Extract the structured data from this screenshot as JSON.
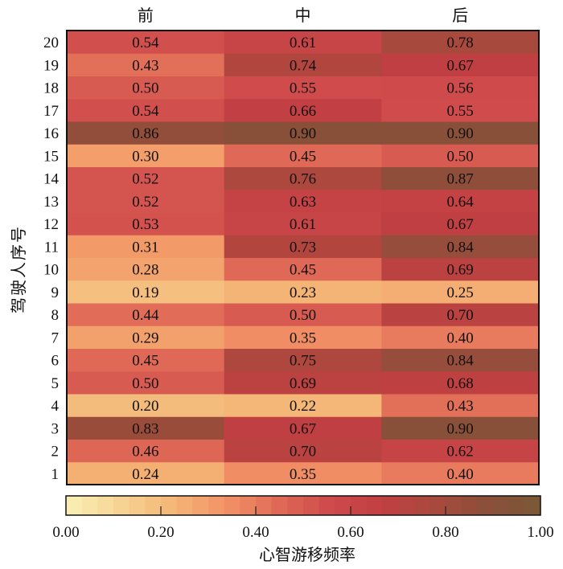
{
  "chart_data": {
    "type": "heatmap",
    "title": "",
    "xlabel": "",
    "ylabel": "驾驶人序号",
    "x_categories": [
      "前",
      "中",
      "后"
    ],
    "y_categories": [
      "1",
      "2",
      "3",
      "4",
      "5",
      "6",
      "7",
      "8",
      "9",
      "10",
      "11",
      "12",
      "13",
      "14",
      "15",
      "16",
      "17",
      "18",
      "19",
      "20"
    ],
    "values": [
      [
        0.24,
        0.35,
        0.4
      ],
      [
        0.46,
        0.7,
        0.62
      ],
      [
        0.83,
        0.67,
        0.9
      ],
      [
        0.2,
        0.22,
        0.43
      ],
      [
        0.5,
        0.69,
        0.68
      ],
      [
        0.45,
        0.75,
        0.84
      ],
      [
        0.29,
        0.35,
        0.4
      ],
      [
        0.44,
        0.5,
        0.7
      ],
      [
        0.19,
        0.23,
        0.25
      ],
      [
        0.28,
        0.45,
        0.69
      ],
      [
        0.31,
        0.73,
        0.84
      ],
      [
        0.53,
        0.61,
        0.67
      ],
      [
        0.52,
        0.63,
        0.64
      ],
      [
        0.52,
        0.76,
        0.87
      ],
      [
        0.3,
        0.45,
        0.5
      ],
      [
        0.86,
        0.9,
        0.9
      ],
      [
        0.54,
        0.66,
        0.55
      ],
      [
        0.5,
        0.55,
        0.56
      ],
      [
        0.43,
        0.74,
        0.67
      ],
      [
        0.54,
        0.61,
        0.78
      ]
    ],
    "value_labels_shown": true,
    "colorbar": {
      "label": "心智游移频率",
      "range": [
        0,
        1
      ],
      "ticks": [
        0.0,
        0.2,
        0.4,
        0.6,
        0.8,
        1.0
      ],
      "tick_labels": [
        "0.00",
        "0.20",
        "0.40",
        "0.60",
        "0.80",
        "1.00"
      ],
      "orientation": "horizontal",
      "placement": "bottom",
      "colormap_stops": [
        "#f9f0b6",
        "#f6d594",
        "#f4b676",
        "#f39366",
        "#e06b57",
        "#cf4a4b",
        "#c13f42",
        "#a84a3d",
        "#8a4f39",
        "#7a5937"
      ]
    }
  }
}
